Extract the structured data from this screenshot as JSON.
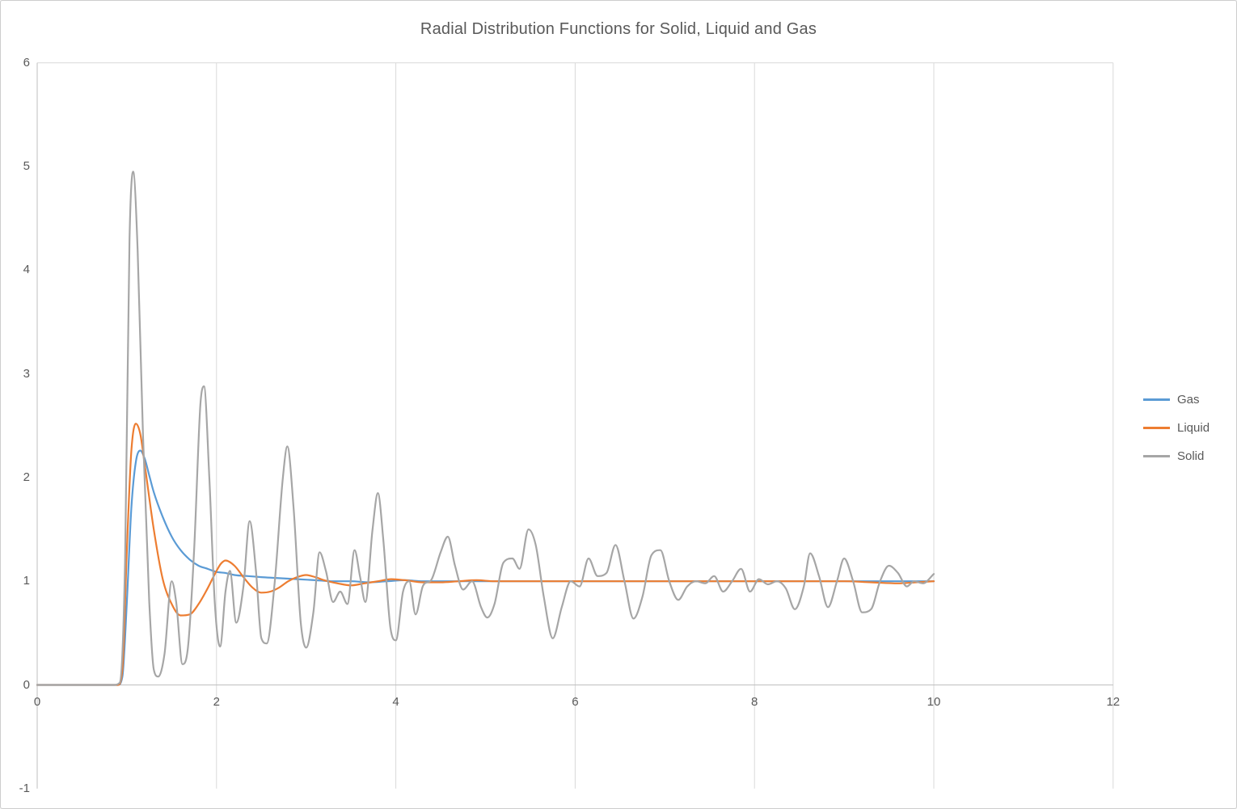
{
  "window": {
    "background": "#ffffff",
    "border_color": "#cdcdcd"
  },
  "chart_data": {
    "type": "line",
    "title": "Radial Distribution Functions for Solid, Liquid and Gas",
    "xlabel": "",
    "ylabel": "",
    "xlim": [
      0,
      12
    ],
    "ylim": [
      -1,
      6
    ],
    "x_ticks": [
      0,
      2,
      4,
      6,
      8,
      10,
      12
    ],
    "y_ticks": [
      -1,
      0,
      1,
      2,
      3,
      4,
      5,
      6
    ],
    "grid": "vertical major gridlines visible, top boundary line visible",
    "legend_position": "right",
    "colors": {
      "gridline": "#d9d9d9",
      "axis_line": "#bfbfbf",
      "text": "#595959"
    },
    "series": [
      {
        "name": "Gas",
        "color": "#5b9bd5",
        "points": [
          [
            0,
            0
          ],
          [
            0.3,
            0
          ],
          [
            0.6,
            0
          ],
          [
            0.85,
            0
          ],
          [
            0.9,
            0
          ],
          [
            0.95,
            0.08
          ],
          [
            1.0,
            0.8
          ],
          [
            1.05,
            1.7
          ],
          [
            1.1,
            2.15
          ],
          [
            1.15,
            2.26
          ],
          [
            1.2,
            2.18
          ],
          [
            1.25,
            2.02
          ],
          [
            1.3,
            1.86
          ],
          [
            1.4,
            1.62
          ],
          [
            1.5,
            1.43
          ],
          [
            1.6,
            1.3
          ],
          [
            1.7,
            1.21
          ],
          [
            1.8,
            1.15
          ],
          [
            1.9,
            1.12
          ],
          [
            2.0,
            1.09
          ],
          [
            2.1,
            1.08
          ],
          [
            2.2,
            1.06
          ],
          [
            2.35,
            1.05
          ],
          [
            2.5,
            1.04
          ],
          [
            2.7,
            1.03
          ],
          [
            2.9,
            1.02
          ],
          [
            3.1,
            1.01
          ],
          [
            3.3,
            1.0
          ],
          [
            3.5,
            1.0
          ],
          [
            3.7,
            0.99
          ],
          [
            3.9,
            1.0
          ],
          [
            4.1,
            1.01
          ],
          [
            4.3,
            1.0
          ],
          [
            4.6,
            1.0
          ],
          [
            5.0,
            1.0
          ],
          [
            5.4,
            1.0
          ],
          [
            5.8,
            1.0
          ],
          [
            6.2,
            1.0
          ],
          [
            6.6,
            1.0
          ],
          [
            7.0,
            1.0
          ],
          [
            7.4,
            1.0
          ],
          [
            7.8,
            1.0
          ],
          [
            8.2,
            1.0
          ],
          [
            8.6,
            1.0
          ],
          [
            9.0,
            1.0
          ],
          [
            9.4,
            1.0
          ],
          [
            9.7,
            1.0
          ],
          [
            10.0,
            1.0
          ]
        ]
      },
      {
        "name": "Liquid",
        "color": "#ed7d31",
        "points": [
          [
            0,
            0
          ],
          [
            0.3,
            0
          ],
          [
            0.6,
            0
          ],
          [
            0.85,
            0
          ],
          [
            0.9,
            0
          ],
          [
            0.95,
            0.15
          ],
          [
            1.0,
            1.3
          ],
          [
            1.05,
            2.25
          ],
          [
            1.1,
            2.52
          ],
          [
            1.15,
            2.42
          ],
          [
            1.2,
            2.12
          ],
          [
            1.3,
            1.5
          ],
          [
            1.4,
            1.02
          ],
          [
            1.5,
            0.78
          ],
          [
            1.6,
            0.67
          ],
          [
            1.7,
            0.68
          ],
          [
            1.8,
            0.78
          ],
          [
            1.9,
            0.93
          ],
          [
            2.0,
            1.1
          ],
          [
            2.05,
            1.17
          ],
          [
            2.1,
            1.2
          ],
          [
            2.2,
            1.15
          ],
          [
            2.3,
            1.04
          ],
          [
            2.4,
            0.94
          ],
          [
            2.5,
            0.89
          ],
          [
            2.6,
            0.9
          ],
          [
            2.7,
            0.94
          ],
          [
            2.8,
            1.0
          ],
          [
            2.9,
            1.04
          ],
          [
            3.0,
            1.06
          ],
          [
            3.1,
            1.04
          ],
          [
            3.2,
            1.01
          ],
          [
            3.35,
            0.98
          ],
          [
            3.5,
            0.96
          ],
          [
            3.65,
            0.98
          ],
          [
            3.8,
            1.0
          ],
          [
            3.95,
            1.02
          ],
          [
            4.1,
            1.01
          ],
          [
            4.3,
            0.99
          ],
          [
            4.5,
            0.99
          ],
          [
            4.7,
            1.0
          ],
          [
            4.9,
            1.01
          ],
          [
            5.1,
            1.0
          ],
          [
            5.4,
            1.0
          ],
          [
            5.7,
            1.0
          ],
          [
            6.0,
            1.0
          ],
          [
            6.3,
            1.0
          ],
          [
            6.6,
            1.0
          ],
          [
            7.0,
            1.0
          ],
          [
            7.4,
            1.0
          ],
          [
            7.8,
            1.0
          ],
          [
            8.2,
            1.0
          ],
          [
            8.6,
            1.0
          ],
          [
            9.0,
            1.0
          ],
          [
            9.3,
            0.99
          ],
          [
            9.6,
            0.98
          ],
          [
            9.8,
            0.99
          ],
          [
            10.0,
            1.0
          ]
        ]
      },
      {
        "name": "Solid",
        "color": "#a6a6a6",
        "points": [
          [
            0,
            0
          ],
          [
            0.3,
            0
          ],
          [
            0.6,
            0
          ],
          [
            0.85,
            0
          ],
          [
            0.92,
            0.02
          ],
          [
            0.98,
            1.2
          ],
          [
            1.03,
            4.3
          ],
          [
            1.07,
            4.95
          ],
          [
            1.12,
            4.2
          ],
          [
            1.18,
            2.4
          ],
          [
            1.25,
            0.8
          ],
          [
            1.3,
            0.15
          ],
          [
            1.35,
            0.08
          ],
          [
            1.42,
            0.3
          ],
          [
            1.5,
            1.0
          ],
          [
            1.55,
            0.8
          ],
          [
            1.62,
            0.2
          ],
          [
            1.68,
            0.35
          ],
          [
            1.75,
            1.3
          ],
          [
            1.82,
            2.7
          ],
          [
            1.86,
            2.88
          ],
          [
            1.92,
            2.0
          ],
          [
            1.98,
            0.8
          ],
          [
            2.04,
            0.37
          ],
          [
            2.1,
            0.9
          ],
          [
            2.15,
            1.1
          ],
          [
            2.22,
            0.6
          ],
          [
            2.3,
            0.95
          ],
          [
            2.37,
            1.58
          ],
          [
            2.44,
            1.1
          ],
          [
            2.5,
            0.45
          ],
          [
            2.56,
            0.4
          ],
          [
            2.65,
            1.0
          ],
          [
            2.74,
            2.0
          ],
          [
            2.79,
            2.3
          ],
          [
            2.86,
            1.7
          ],
          [
            2.94,
            0.6
          ],
          [
            3.0,
            0.36
          ],
          [
            3.08,
            0.7
          ],
          [
            3.15,
            1.28
          ],
          [
            3.22,
            1.1
          ],
          [
            3.3,
            0.8
          ],
          [
            3.38,
            0.9
          ],
          [
            3.46,
            0.78
          ],
          [
            3.54,
            1.3
          ],
          [
            3.6,
            1.05
          ],
          [
            3.66,
            0.8
          ],
          [
            3.74,
            1.5
          ],
          [
            3.8,
            1.85
          ],
          [
            3.86,
            1.4
          ],
          [
            3.94,
            0.55
          ],
          [
            4.0,
            0.43
          ],
          [
            4.08,
            0.9
          ],
          [
            4.15,
            1.0
          ],
          [
            4.22,
            0.68
          ],
          [
            4.3,
            0.95
          ],
          [
            4.4,
            1.02
          ],
          [
            4.5,
            1.28
          ],
          [
            4.58,
            1.43
          ],
          [
            4.66,
            1.15
          ],
          [
            4.75,
            0.92
          ],
          [
            4.85,
            1.0
          ],
          [
            4.95,
            0.75
          ],
          [
            5.02,
            0.65
          ],
          [
            5.1,
            0.78
          ],
          [
            5.2,
            1.18
          ],
          [
            5.3,
            1.22
          ],
          [
            5.38,
            1.12
          ],
          [
            5.48,
            1.5
          ],
          [
            5.56,
            1.35
          ],
          [
            5.65,
            0.85
          ],
          [
            5.75,
            0.45
          ],
          [
            5.85,
            0.75
          ],
          [
            5.95,
            1.0
          ],
          [
            6.05,
            0.95
          ],
          [
            6.15,
            1.22
          ],
          [
            6.25,
            1.05
          ],
          [
            6.35,
            1.08
          ],
          [
            6.45,
            1.35
          ],
          [
            6.55,
            1.0
          ],
          [
            6.65,
            0.64
          ],
          [
            6.75,
            0.85
          ],
          [
            6.85,
            1.25
          ],
          [
            6.95,
            1.3
          ],
          [
            7.05,
            1.0
          ],
          [
            7.15,
            0.82
          ],
          [
            7.25,
            0.95
          ],
          [
            7.35,
            1.0
          ],
          [
            7.45,
            0.98
          ],
          [
            7.55,
            1.05
          ],
          [
            7.65,
            0.9
          ],
          [
            7.75,
            1.0
          ],
          [
            7.85,
            1.12
          ],
          [
            7.95,
            0.9
          ],
          [
            8.05,
            1.02
          ],
          [
            8.15,
            0.97
          ],
          [
            8.25,
            1.0
          ],
          [
            8.35,
            0.93
          ],
          [
            8.45,
            0.73
          ],
          [
            8.55,
            0.95
          ],
          [
            8.62,
            1.27
          ],
          [
            8.72,
            1.05
          ],
          [
            8.82,
            0.75
          ],
          [
            8.92,
            1.0
          ],
          [
            9.0,
            1.22
          ],
          [
            9.1,
            1.0
          ],
          [
            9.2,
            0.7
          ],
          [
            9.3,
            0.73
          ],
          [
            9.4,
            1.0
          ],
          [
            9.5,
            1.15
          ],
          [
            9.6,
            1.08
          ],
          [
            9.7,
            0.95
          ],
          [
            9.78,
            1.0
          ],
          [
            9.88,
            0.98
          ],
          [
            10.0,
            1.07
          ]
        ]
      }
    ]
  }
}
